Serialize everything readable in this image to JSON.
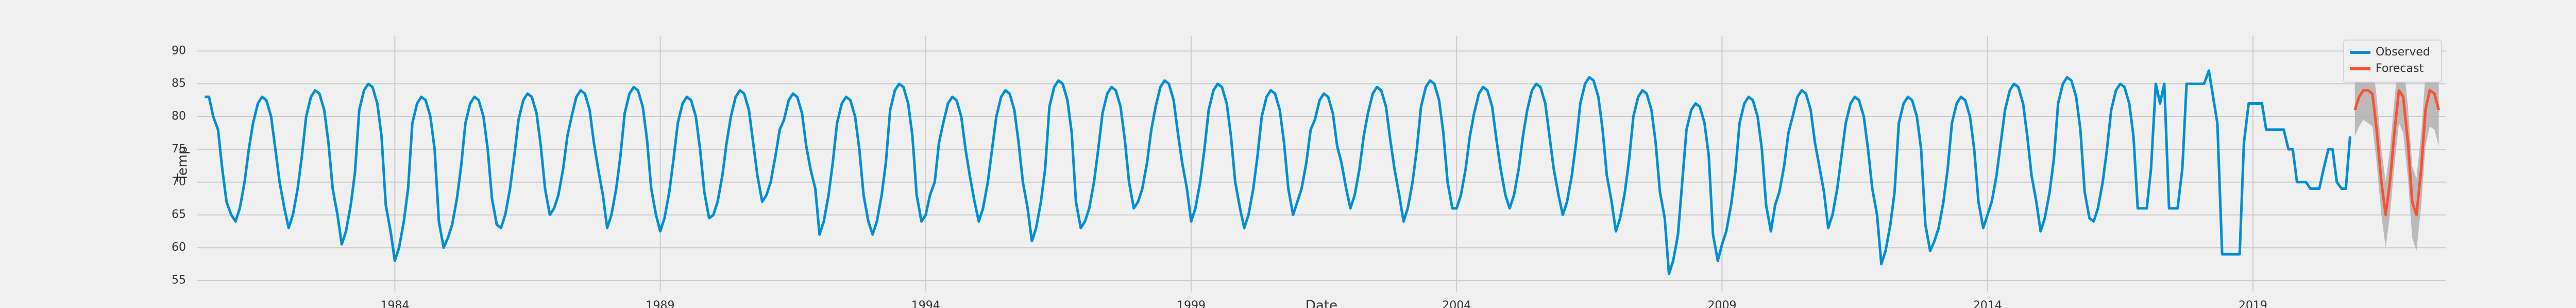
{
  "chart_data": {
    "type": "line",
    "y_label": "Temp",
    "x_label": "Date",
    "xlim": [
      1980.28,
      2022.63
    ],
    "ylim": [
      53.3,
      92.3
    ],
    "xticks": [
      1984,
      1989,
      1994,
      1999,
      2004,
      2009,
      2014,
      2019
    ],
    "yticks": [
      55,
      60,
      65,
      70,
      75,
      80,
      85,
      90
    ],
    "grid": true,
    "legend": "upper right",
    "series": [
      {
        "name": "Observed",
        "color": "#008fd5",
        "x": [
          1980.42,
          1980.5,
          1980.58,
          1980.67,
          1980.75,
          1980.83,
          1980.92,
          1981,
          1981.08,
          1981.17,
          1981.25,
          1981.33,
          1981.42,
          1981.5,
          1981.58,
          1981.67,
          1981.75,
          1981.83,
          1981.92,
          1982,
          1982.08,
          1982.17,
          1982.25,
          1982.33,
          1982.42,
          1982.5,
          1982.58,
          1982.67,
          1982.75,
          1982.83,
          1982.92,
          1983,
          1983.08,
          1983.17,
          1983.25,
          1983.33,
          1983.42,
          1983.5,
          1983.58,
          1983.67,
          1983.75,
          1983.83,
          1983.92,
          1984,
          1984.08,
          1984.17,
          1984.25,
          1984.33,
          1984.42,
          1984.5,
          1984.58,
          1984.67,
          1984.75,
          1984.83,
          1984.92,
          1985,
          1985.08,
          1985.17,
          1985.25,
          1985.33,
          1985.42,
          1985.5,
          1985.58,
          1985.67,
          1985.75,
          1985.83,
          1985.92,
          1986,
          1986.08,
          1986.17,
          1986.25,
          1986.33,
          1986.42,
          1986.5,
          1986.58,
          1986.67,
          1986.75,
          1986.83,
          1986.92,
          1987,
          1987.08,
          1987.17,
          1987.25,
          1987.33,
          1987.42,
          1987.5,
          1987.58,
          1987.67,
          1987.75,
          1987.83,
          1987.92,
          1988,
          1988.08,
          1988.17,
          1988.25,
          1988.33,
          1988.42,
          1988.5,
          1988.58,
          1988.67,
          1988.75,
          1988.83,
          1988.92,
          1989,
          1989.08,
          1989.17,
          1989.25,
          1989.33,
          1989.42,
          1989.5,
          1989.58,
          1989.67,
          1989.75,
          1989.83,
          1989.92,
          1990,
          1990.08,
          1990.17,
          1990.25,
          1990.33,
          1990.42,
          1990.5,
          1990.58,
          1990.67,
          1990.75,
          1990.83,
          1990.92,
          1991,
          1991.08,
          1991.17,
          1991.25,
          1991.33,
          1991.42,
          1991.5,
          1991.58,
          1991.67,
          1991.75,
          1991.83,
          1991.92,
          1992,
          1992.08,
          1992.17,
          1992.25,
          1992.33,
          1992.42,
          1992.5,
          1992.58,
          1992.67,
          1992.75,
          1992.83,
          1992.92,
          1993,
          1993.08,
          1993.17,
          1993.25,
          1993.33,
          1993.42,
          1993.5,
          1993.58,
          1993.67,
          1993.75,
          1993.83,
          1993.92,
          1994,
          1994.08,
          1994.17,
          1994.25,
          1994.33,
          1994.42,
          1994.5,
          1994.58,
          1994.67,
          1994.75,
          1994.83,
          1994.92,
          1995,
          1995.08,
          1995.17,
          1995.25,
          1995.33,
          1995.42,
          1995.5,
          1995.58,
          1995.67,
          1995.75,
          1995.83,
          1995.92,
          1996,
          1996.08,
          1996.17,
          1996.25,
          1996.33,
          1996.42,
          1996.5,
          1996.58,
          1996.67,
          1996.75,
          1996.83,
          1996.92,
          1997,
          1997.08,
          1997.17,
          1997.25,
          1997.33,
          1997.42,
          1997.5,
          1997.58,
          1997.67,
          1997.75,
          1997.83,
          1997.92,
          1998,
          1998.08,
          1998.17,
          1998.25,
          1998.33,
          1998.42,
          1998.5,
          1998.58,
          1998.67,
          1998.75,
          1998.83,
          1998.92,
          1999,
          1999.08,
          1999.17,
          1999.25,
          1999.33,
          1999.42,
          1999.5,
          1999.58,
          1999.67,
          1999.75,
          1999.83,
          1999.92,
          2000,
          2000.08,
          2000.17,
          2000.25,
          2000.33,
          2000.42,
          2000.5,
          2000.58,
          2000.67,
          2000.75,
          2000.83,
          2000.92,
          2001,
          2001.08,
          2001.17,
          2001.25,
          2001.33,
          2001.42,
          2001.5,
          2001.58,
          2001.67,
          2001.75,
          2001.83,
          2001.92,
          2002,
          2002.08,
          2002.17,
          2002.25,
          2002.33,
          2002.42,
          2002.5,
          2002.58,
          2002.67,
          2002.75,
          2002.83,
          2002.92,
          2003,
          2003.08,
          2003.17,
          2003.25,
          2003.33,
          2003.42,
          2003.5,
          2003.58,
          2003.67,
          2003.75,
          2003.83,
          2003.92,
          2004,
          2004.08,
          2004.17,
          2004.25,
          2004.33,
          2004.42,
          2004.5,
          2004.58,
          2004.67,
          2004.75,
          2004.83,
          2004.92,
          2005,
          2005.08,
          2005.17,
          2005.25,
          2005.33,
          2005.42,
          2005.5,
          2005.58,
          2005.67,
          2005.75,
          2005.83,
          2005.92,
          2006,
          2006.08,
          2006.17,
          2006.25,
          2006.33,
          2006.42,
          2006.5,
          2006.58,
          2006.67,
          2006.75,
          2006.83,
          2006.92,
          2007,
          2007.08,
          2007.17,
          2007.25,
          2007.33,
          2007.42,
          2007.5,
          2007.58,
          2007.67,
          2007.75,
          2007.83,
          2007.92,
          2008,
          2008.08,
          2008.17,
          2008.25,
          2008.33,
          2008.42,
          2008.5,
          2008.58,
          2008.67,
          2008.75,
          2008.83,
          2008.92,
          2009,
          2009.08,
          2009.17,
          2009.25,
          2009.33,
          2009.42,
          2009.5,
          2009.58,
          2009.67,
          2009.75,
          2009.83,
          2009.92,
          2010,
          2010.08,
          2010.17,
          2010.25,
          2010.33,
          2010.42,
          2010.5,
          2010.58,
          2010.67,
          2010.75,
          2010.83,
          2010.92,
          2011,
          2011.08,
          2011.17,
          2011.25,
          2011.33,
          2011.42,
          2011.5,
          2011.58,
          2011.67,
          2011.75,
          2011.83,
          2011.92,
          2012,
          2012.08,
          2012.17,
          2012.25,
          2012.33,
          2012.42,
          2012.5,
          2012.58,
          2012.67,
          2012.75,
          2012.83,
          2012.92,
          2013,
          2013.08,
          2013.17,
          2013.25,
          2013.33,
          2013.42,
          2013.5,
          2013.58,
          2013.67,
          2013.75,
          2013.83,
          2013.92,
          2014,
          2014.08,
          2014.17,
          2014.25,
          2014.33,
          2014.42,
          2014.5,
          2014.58,
          2014.67,
          2014.75,
          2014.83,
          2014.92,
          2015,
          2015.08,
          2015.17,
          2015.25,
          2015.33,
          2015.42,
          2015.5,
          2015.58,
          2015.67,
          2015.75,
          2015.83,
          2015.92,
          2016,
          2016.08,
          2016.17,
          2016.25,
          2016.33,
          2016.42,
          2016.5,
          2016.58,
          2016.67,
          2016.75,
          2016.83,
          2016.92,
          2017,
          2017.08,
          2017.17,
          2017.25,
          2017.33,
          2017.42,
          2017.5,
          2017.58,
          2017.67,
          2017.75,
          2017.83,
          2017.92,
          2018,
          2018.08,
          2018.17,
          2018.25,
          2018.33,
          2018.42,
          2018.5,
          2018.58,
          2018.67,
          2018.75,
          2018.83,
          2018.92,
          2019,
          2019.08,
          2019.17,
          2019.25,
          2019.33,
          2019.42,
          2019.5,
          2019.58,
          2019.67,
          2019.75,
          2019.83,
          2019.92,
          2020,
          2020.08,
          2020.17,
          2020.25,
          2020.33,
          2020.42,
          2020.5,
          2020.58,
          2020.67,
          2020.75,
          2020.83
        ],
        "values": [
          83,
          83,
          80,
          78,
          72,
          67,
          65,
          64,
          66,
          70,
          75,
          79,
          82,
          83,
          82.5,
          80,
          75,
          70,
          66,
          63,
          65,
          69,
          74,
          80,
          83,
          84,
          83.5,
          81,
          76,
          69,
          65,
          60.5,
          62.5,
          66.5,
          71.5,
          81,
          84,
          85,
          84.5,
          82,
          77,
          66.5,
          62.5,
          58,
          60,
          64,
          69,
          79,
          82,
          83,
          82.5,
          80,
          75,
          64,
          60,
          61.5,
          63.5,
          67.5,
          72.5,
          79,
          82,
          83,
          82.5,
          80,
          75,
          67.5,
          63.5,
          63,
          65,
          69,
          74,
          79.5,
          82.5,
          83.5,
          83,
          80.5,
          75.5,
          69,
          65,
          66,
          68,
          72,
          77,
          80,
          83,
          84,
          83.5,
          81,
          76,
          72,
          68,
          63,
          65,
          69,
          74,
          80.5,
          83.5,
          84.5,
          84,
          81.5,
          76.5,
          69,
          65,
          62.5,
          64.5,
          68.5,
          73.5,
          79,
          82,
          83,
          82.5,
          80,
          75,
          68.5,
          64.5,
          65,
          67,
          71,
          76,
          80,
          83,
          84,
          83.5,
          81,
          76,
          71,
          67,
          68,
          70,
          74,
          78,
          79.5,
          82.5,
          83.5,
          83,
          80.5,
          75.5,
          72,
          69,
          62,
          64,
          68,
          73,
          79,
          82,
          83,
          82.5,
          80,
          75,
          68,
          64,
          62,
          64,
          68,
          73,
          81,
          84,
          85,
          84.5,
          82,
          77,
          68,
          64,
          65,
          68,
          70,
          76,
          79,
          82,
          83,
          82.5,
          80,
          75,
          71,
          67,
          64,
          66,
          70,
          75,
          80,
          83,
          84,
          83.5,
          81,
          76,
          70,
          66,
          61,
          63,
          67,
          72,
          81.5,
          84.5,
          85.5,
          85,
          82.5,
          77.5,
          67,
          63,
          64,
          66,
          70,
          75,
          80.5,
          83.5,
          84.5,
          84,
          81.5,
          76.5,
          70,
          66,
          67,
          69,
          73,
          78,
          81.5,
          84.5,
          85.5,
          85,
          82.5,
          77.5,
          73,
          69,
          64,
          66,
          70,
          75,
          81,
          84,
          85,
          84.5,
          82,
          77,
          70,
          66,
          63,
          65,
          69,
          74,
          80,
          83,
          84,
          83.5,
          81,
          76,
          69,
          65,
          67,
          69,
          73,
          78,
          79.5,
          82.5,
          83.5,
          83,
          80.5,
          75.5,
          73,
          69,
          66,
          68,
          72,
          77,
          80.5,
          83.5,
          84.5,
          84,
          81.5,
          76.5,
          72,
          68,
          64,
          66,
          70,
          75,
          81.5,
          84.5,
          85.5,
          85,
          82.5,
          77.5,
          70,
          66,
          66,
          68,
          72,
          77,
          80.5,
          83.5,
          84.5,
          84,
          81.5,
          76.5,
          72,
          68,
          66,
          68,
          72,
          77,
          81,
          84,
          85,
          84.5,
          82,
          77,
          72,
          68,
          65,
          67,
          71,
          76,
          82,
          85,
          86,
          85.5,
          83,
          78,
          71,
          67,
          62.5,
          64.5,
          68.5,
          73.5,
          80,
          83,
          84,
          83.5,
          81,
          76,
          68.5,
          64.5,
          56,
          58,
          62,
          70,
          78,
          81,
          82,
          81.5,
          79,
          74,
          62,
          58,
          60.5,
          62.5,
          66.5,
          71.5,
          79,
          82,
          83,
          82.5,
          80,
          75,
          66.5,
          62.5,
          66.5,
          68.5,
          72.5,
          77.5,
          80,
          83,
          84,
          83.5,
          81,
          76,
          72.5,
          68.5,
          63,
          65,
          69,
          74,
          79,
          82,
          83,
          82.5,
          80,
          75,
          69,
          65,
          57.5,
          59.5,
          63.5,
          68.5,
          79,
          82,
          83,
          82.5,
          80,
          75,
          63.5,
          59.5,
          61,
          63,
          67,
          72,
          79,
          82,
          83,
          82.5,
          80,
          75,
          67,
          63,
          65,
          67,
          71,
          76,
          81,
          84,
          85,
          84.5,
          82,
          77,
          71,
          67,
          62.5,
          64.5,
          68.5,
          73.5,
          82,
          85,
          86,
          85.5,
          83,
          78,
          68.5,
          64.5,
          64,
          66,
          70,
          75,
          81,
          84,
          85,
          84.5,
          82,
          77,
          66,
          66,
          66,
          72,
          85,
          82,
          85,
          66,
          66,
          66,
          72,
          85,
          85,
          85,
          85,
          85,
          87,
          83,
          79,
          59,
          59,
          59,
          59,
          59,
          76,
          82,
          82,
          82,
          82,
          78,
          78,
          78,
          78,
          78,
          75,
          75,
          70,
          70,
          70,
          69,
          69,
          69,
          72,
          75,
          75,
          70,
          69,
          69,
          77
        ]
      },
      {
        "name": "Forecast",
        "color": "#fc4f30",
        "band_color": "#b0b0b0",
        "x": [
          2020.92,
          2021,
          2021.08,
          2021.17,
          2021.25,
          2021.33,
          2021.42,
          2021.5,
          2021.58,
          2021.67,
          2021.75,
          2021.83,
          2021.92,
          2022,
          2022.08,
          2022.17,
          2022.25,
          2022.33,
          2022.42,
          2022.5
        ],
        "values": [
          81,
          83,
          84,
          84,
          83.5,
          78,
          70,
          65,
          70,
          78,
          84,
          83,
          76,
          67,
          65,
          72,
          81,
          84,
          83.5,
          81
        ],
        "lower": [
          77,
          78.5,
          79.5,
          79,
          78.5,
          73,
          65,
          60,
          65,
          73,
          79,
          77.5,
          70.5,
          61.5,
          59.5,
          66.5,
          75.5,
          78.5,
          78,
          75.5
        ],
        "upper": [
          85,
          87.5,
          88.5,
          89,
          88.5,
          83,
          75,
          70,
          75,
          83,
          89,
          88.5,
          81.5,
          72.5,
          70.5,
          77.5,
          86.5,
          89.5,
          89,
          86.5
        ]
      }
    ]
  }
}
